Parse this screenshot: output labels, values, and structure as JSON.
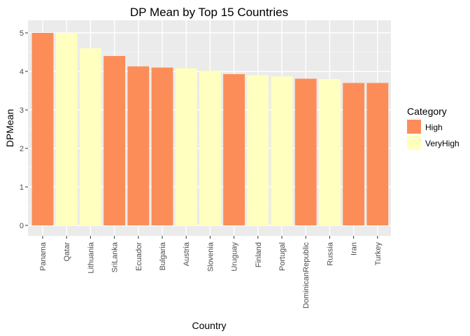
{
  "chart_data": {
    "type": "bar",
    "title": "DP Mean by Top 15 Countries",
    "xlabel": "Country",
    "ylabel": "DPMean",
    "ylim": [
      0,
      5.25
    ],
    "yticks": [
      0,
      1,
      2,
      3,
      4,
      5
    ],
    "grid": true,
    "legend": {
      "title": "Category",
      "position": "right",
      "entries": [
        {
          "name": "High",
          "color": "#FC8D59"
        },
        {
          "name": "VeryHigh",
          "color": "#FFFFBF"
        }
      ]
    },
    "categories": [
      "Panama",
      "Qatar",
      "Lithuania",
      "SriLanka",
      "Ecuador",
      "Bulgaria",
      "Austria",
      "Slovenia",
      "Uruguay",
      "Finland",
      "Portugal",
      "DominicanRepublic",
      "Russia",
      "Iran",
      "Turkey"
    ],
    "values": [
      5.0,
      5.0,
      4.6,
      4.4,
      4.13,
      4.1,
      4.08,
      4.02,
      3.93,
      3.9,
      3.87,
      3.81,
      3.8,
      3.7,
      3.7
    ],
    "category_group": [
      "High",
      "VeryHigh",
      "VeryHigh",
      "High",
      "High",
      "High",
      "VeryHigh",
      "VeryHigh",
      "High",
      "VeryHigh",
      "VeryHigh",
      "High",
      "VeryHigh",
      "High",
      "High"
    ]
  }
}
